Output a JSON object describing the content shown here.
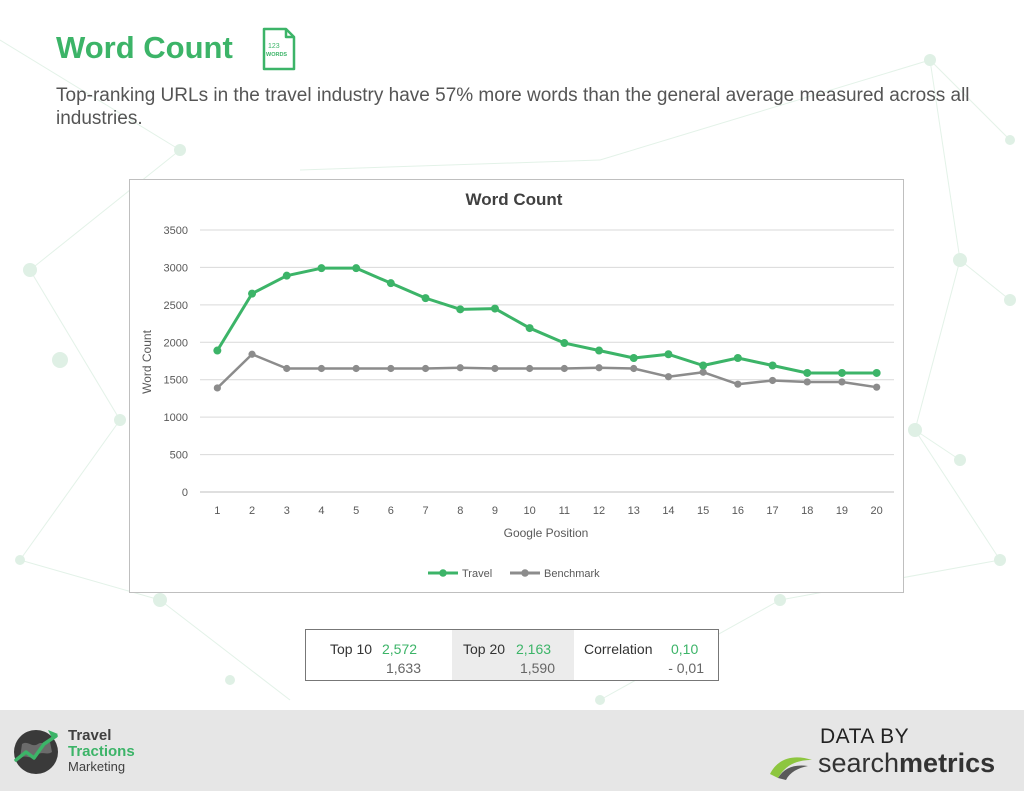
{
  "page": {
    "title": "Word Count",
    "subtitle": "Top-ranking URLs in the travel industry have 57% more words than the general average measured across all industries.",
    "icon_text_1": "123",
    "icon_text_2": "WORDS"
  },
  "colors": {
    "accent_green": "#3cb468",
    "benchmark_gray": "#8c8c8c"
  },
  "chart_data": {
    "type": "line",
    "title": "Word Count",
    "xlabel": "Google Position",
    "ylabel": "Word Count",
    "categories": [
      "1",
      "2",
      "3",
      "4",
      "5",
      "6",
      "7",
      "8",
      "9",
      "10",
      "11",
      "12",
      "13",
      "14",
      "15",
      "16",
      "17",
      "18",
      "19",
      "20"
    ],
    "y_ticks": [
      0,
      500,
      1000,
      1500,
      2000,
      2500,
      3000,
      3500
    ],
    "ylim": [
      0,
      3500
    ],
    "grid": true,
    "legend_position": "bottom",
    "series": [
      {
        "name": "Travel",
        "color": "#3cb468",
        "values": [
          1890,
          2650,
          2890,
          2990,
          2990,
          2790,
          2590,
          2440,
          2450,
          2190,
          1990,
          1890,
          1790,
          1840,
          1690,
          1790,
          1690,
          1590,
          1590,
          1590
        ]
      },
      {
        "name": "Benchmark",
        "color": "#8c8c8c",
        "values": [
          1390,
          1840,
          1650,
          1650,
          1650,
          1650,
          1650,
          1660,
          1650,
          1650,
          1650,
          1660,
          1650,
          1540,
          1600,
          1440,
          1490,
          1470,
          1470,
          1400
        ]
      }
    ]
  },
  "stats": {
    "top10": {
      "label": "Top 10",
      "travel": "2,572",
      "benchmark": "1,633"
    },
    "top20": {
      "label": "Top 20",
      "travel": "2,163",
      "benchmark": "1,590"
    },
    "correlation": {
      "label": "Correlation",
      "travel": "0,10",
      "benchmark": "- 0,01"
    }
  },
  "footer": {
    "brand_line1": "Travel",
    "brand_line2": "Tractions",
    "brand_line3": "Marketing",
    "data_by": "DATA BY",
    "sm_light": "search",
    "sm_bold": "metrics"
  }
}
